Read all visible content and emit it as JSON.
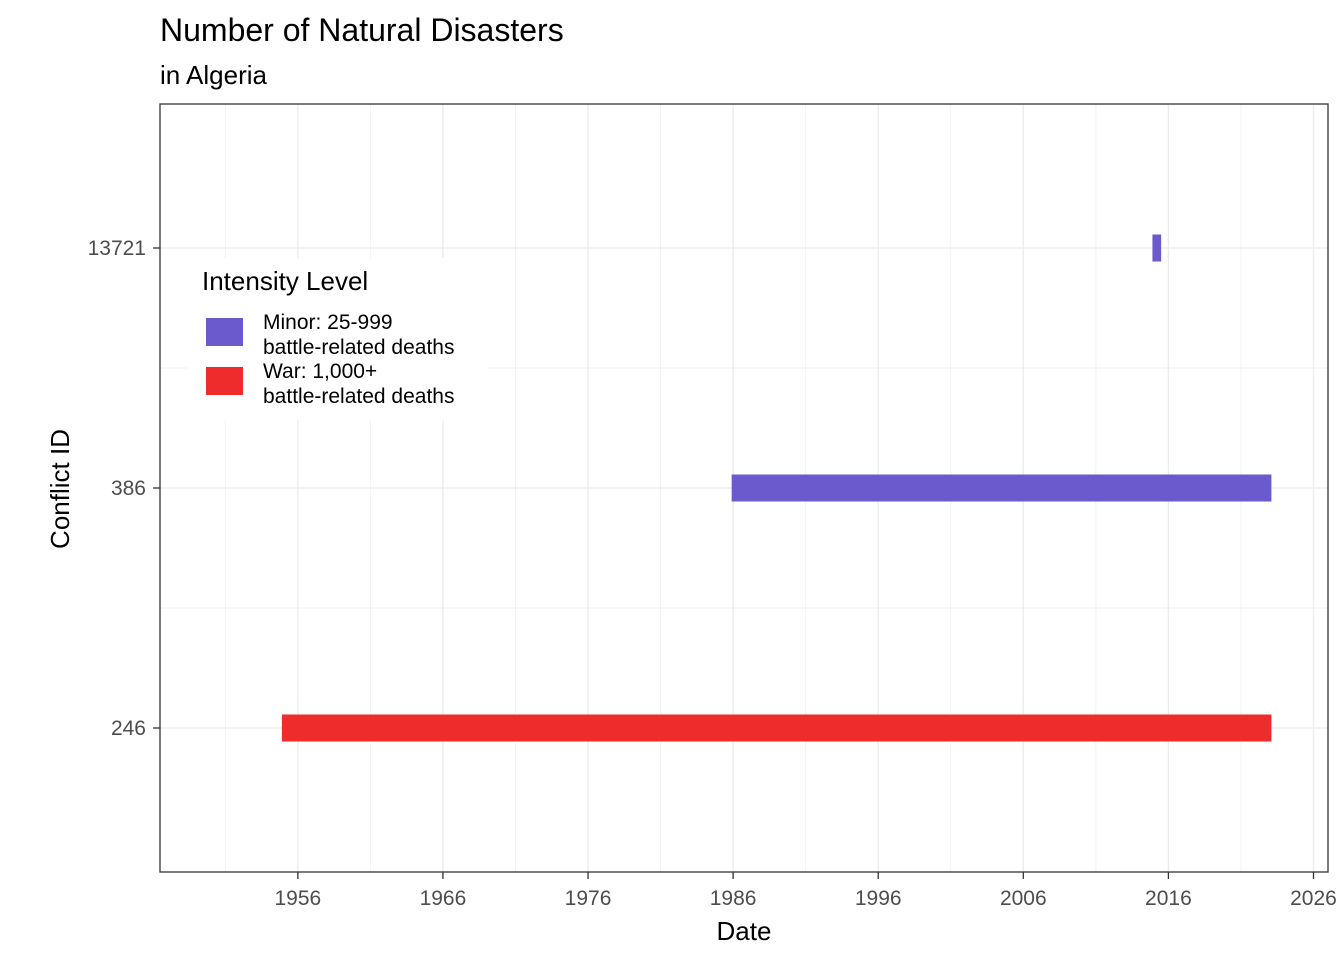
{
  "chart_data": {
    "type": "bar",
    "orientation": "horizontal-timeline",
    "title": "Number of Natural Disasters",
    "subtitle": "in Algeria",
    "xlabel": "Date",
    "ylabel": "Conflict ID",
    "xlim": [
      1946.5,
      2027.0
    ],
    "x_ticks": [
      "1956",
      "1966",
      "1976",
      "1986",
      "1996",
      "2006",
      "2016",
      "2026"
    ],
    "categories": [
      "246",
      "386",
      "13721"
    ],
    "grid": true,
    "legend": {
      "title": "Intensity Level",
      "placement": "top-left",
      "entries": [
        {
          "key": "minor",
          "line1": "Minor: 25-999",
          "line2": "battle-related deaths",
          "color": "#6a5acd"
        },
        {
          "key": "war",
          "line1": "War: 1,000+",
          "line2": "battle-related deaths",
          "color": "#ee2c2c"
        }
      ]
    },
    "segments": [
      {
        "category": "246",
        "start": 1954.9,
        "end": 2023.1,
        "level": "war"
      },
      {
        "category": "386",
        "start": 1985.9,
        "end": 2023.1,
        "level": "minor"
      },
      {
        "category": "13721",
        "start": 2014.9,
        "end": 2015.5,
        "level": "minor"
      }
    ]
  }
}
